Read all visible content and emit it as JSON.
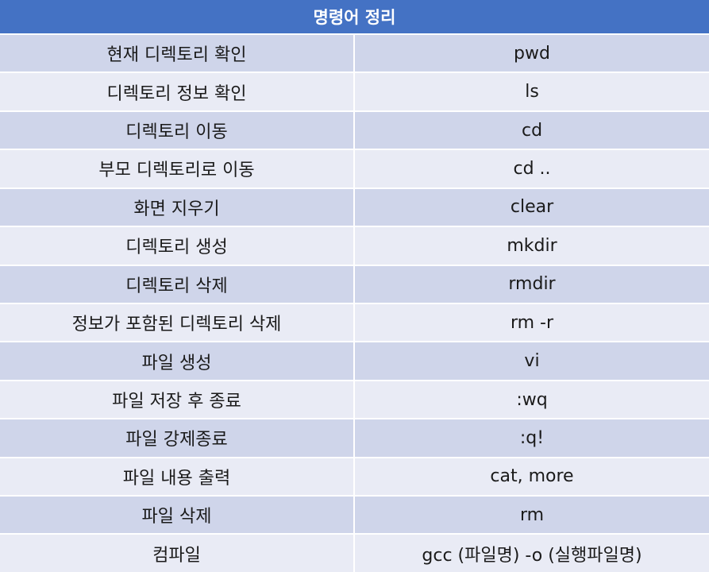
{
  "table": {
    "title": "명령어 정리",
    "rows": [
      {
        "desc": "현재 디렉토리 확인",
        "cmd": "pwd"
      },
      {
        "desc": "디렉토리 정보 확인",
        "cmd": "ls"
      },
      {
        "desc": "디렉토리 이동",
        "cmd": "cd"
      },
      {
        "desc": "부모 디렉토리로 이동",
        "cmd": "cd .."
      },
      {
        "desc": "화면 지우기",
        "cmd": "clear"
      },
      {
        "desc": "디렉토리 생성",
        "cmd": "mkdir"
      },
      {
        "desc": "디렉토리 삭제",
        "cmd": "rmdir"
      },
      {
        "desc": "정보가 포함된 디렉토리 삭제",
        "cmd": "rm -r"
      },
      {
        "desc": "파일 생성",
        "cmd": "vi"
      },
      {
        "desc": "파일 저장 후 종료",
        "cmd": ":wq"
      },
      {
        "desc": "파일 강제종료",
        "cmd": ":q!"
      },
      {
        "desc": "파일 내용 출력",
        "cmd": "cat, more"
      },
      {
        "desc": "파일 삭제",
        "cmd": "rm"
      },
      {
        "desc": "컴파일",
        "cmd": "gcc (파일명) -o (실행파일명)"
      }
    ]
  }
}
